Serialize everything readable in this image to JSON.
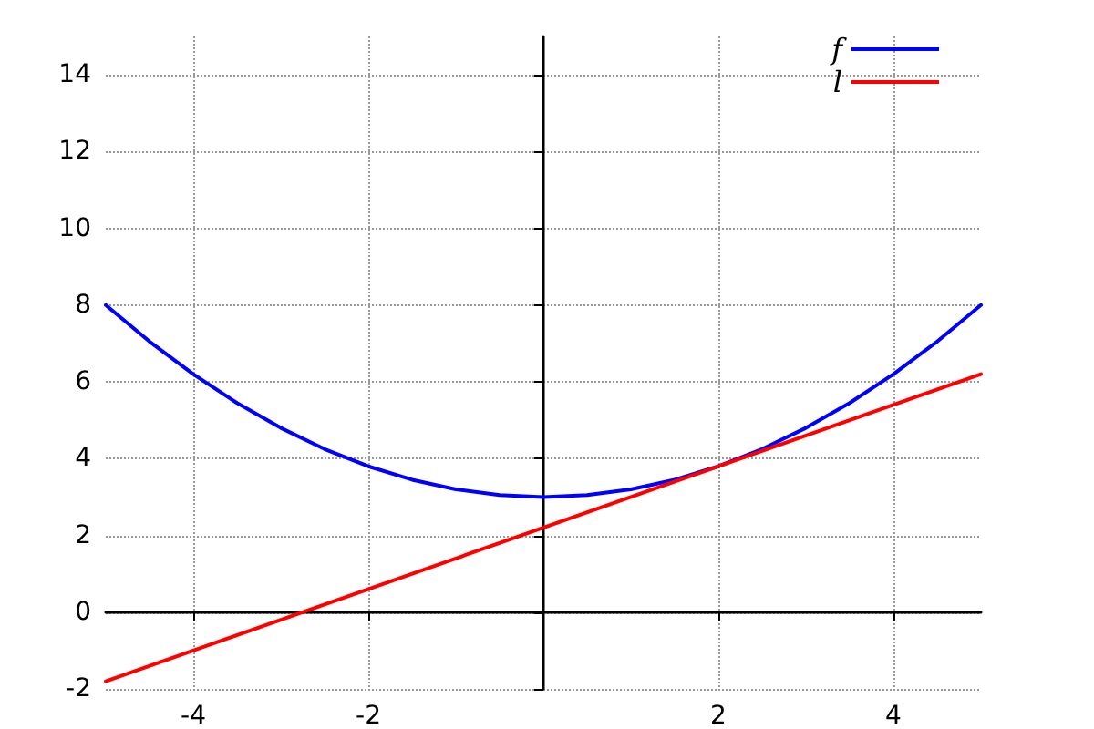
{
  "chart_data": {
    "type": "line",
    "xlim": [
      -5,
      5
    ],
    "ylim": [
      -2,
      15
    ],
    "xticks": [
      -4,
      -2,
      2,
      4
    ],
    "yticks": [
      -2,
      0,
      2,
      4,
      6,
      8,
      10,
      12,
      14
    ],
    "grid": true,
    "legend": "top right",
    "marker": "none",
    "series": [
      {
        "name": "f",
        "color": "#0000ff",
        "x": [
          -5,
          -4.5,
          -4,
          -3.5,
          -3,
          -2.5,
          -2,
          -1.5,
          -1,
          -0.5,
          0,
          0.5,
          1,
          1.5,
          2,
          2.5,
          3,
          3.5,
          4,
          4.5,
          5
        ],
        "values": [
          8,
          7.05,
          6.2,
          5.45,
          4.8,
          4.25,
          3.8,
          3.45,
          3.2,
          3.05,
          3,
          3.05,
          3.2,
          3.45,
          3.8,
          4.25,
          4.8,
          5.45,
          6.2,
          7.05,
          8
        ]
      },
      {
        "name": "l",
        "color": "#ff0000",
        "x": [
          -5,
          5
        ],
        "values": [
          -1.8,
          6.2
        ]
      }
    ]
  }
}
